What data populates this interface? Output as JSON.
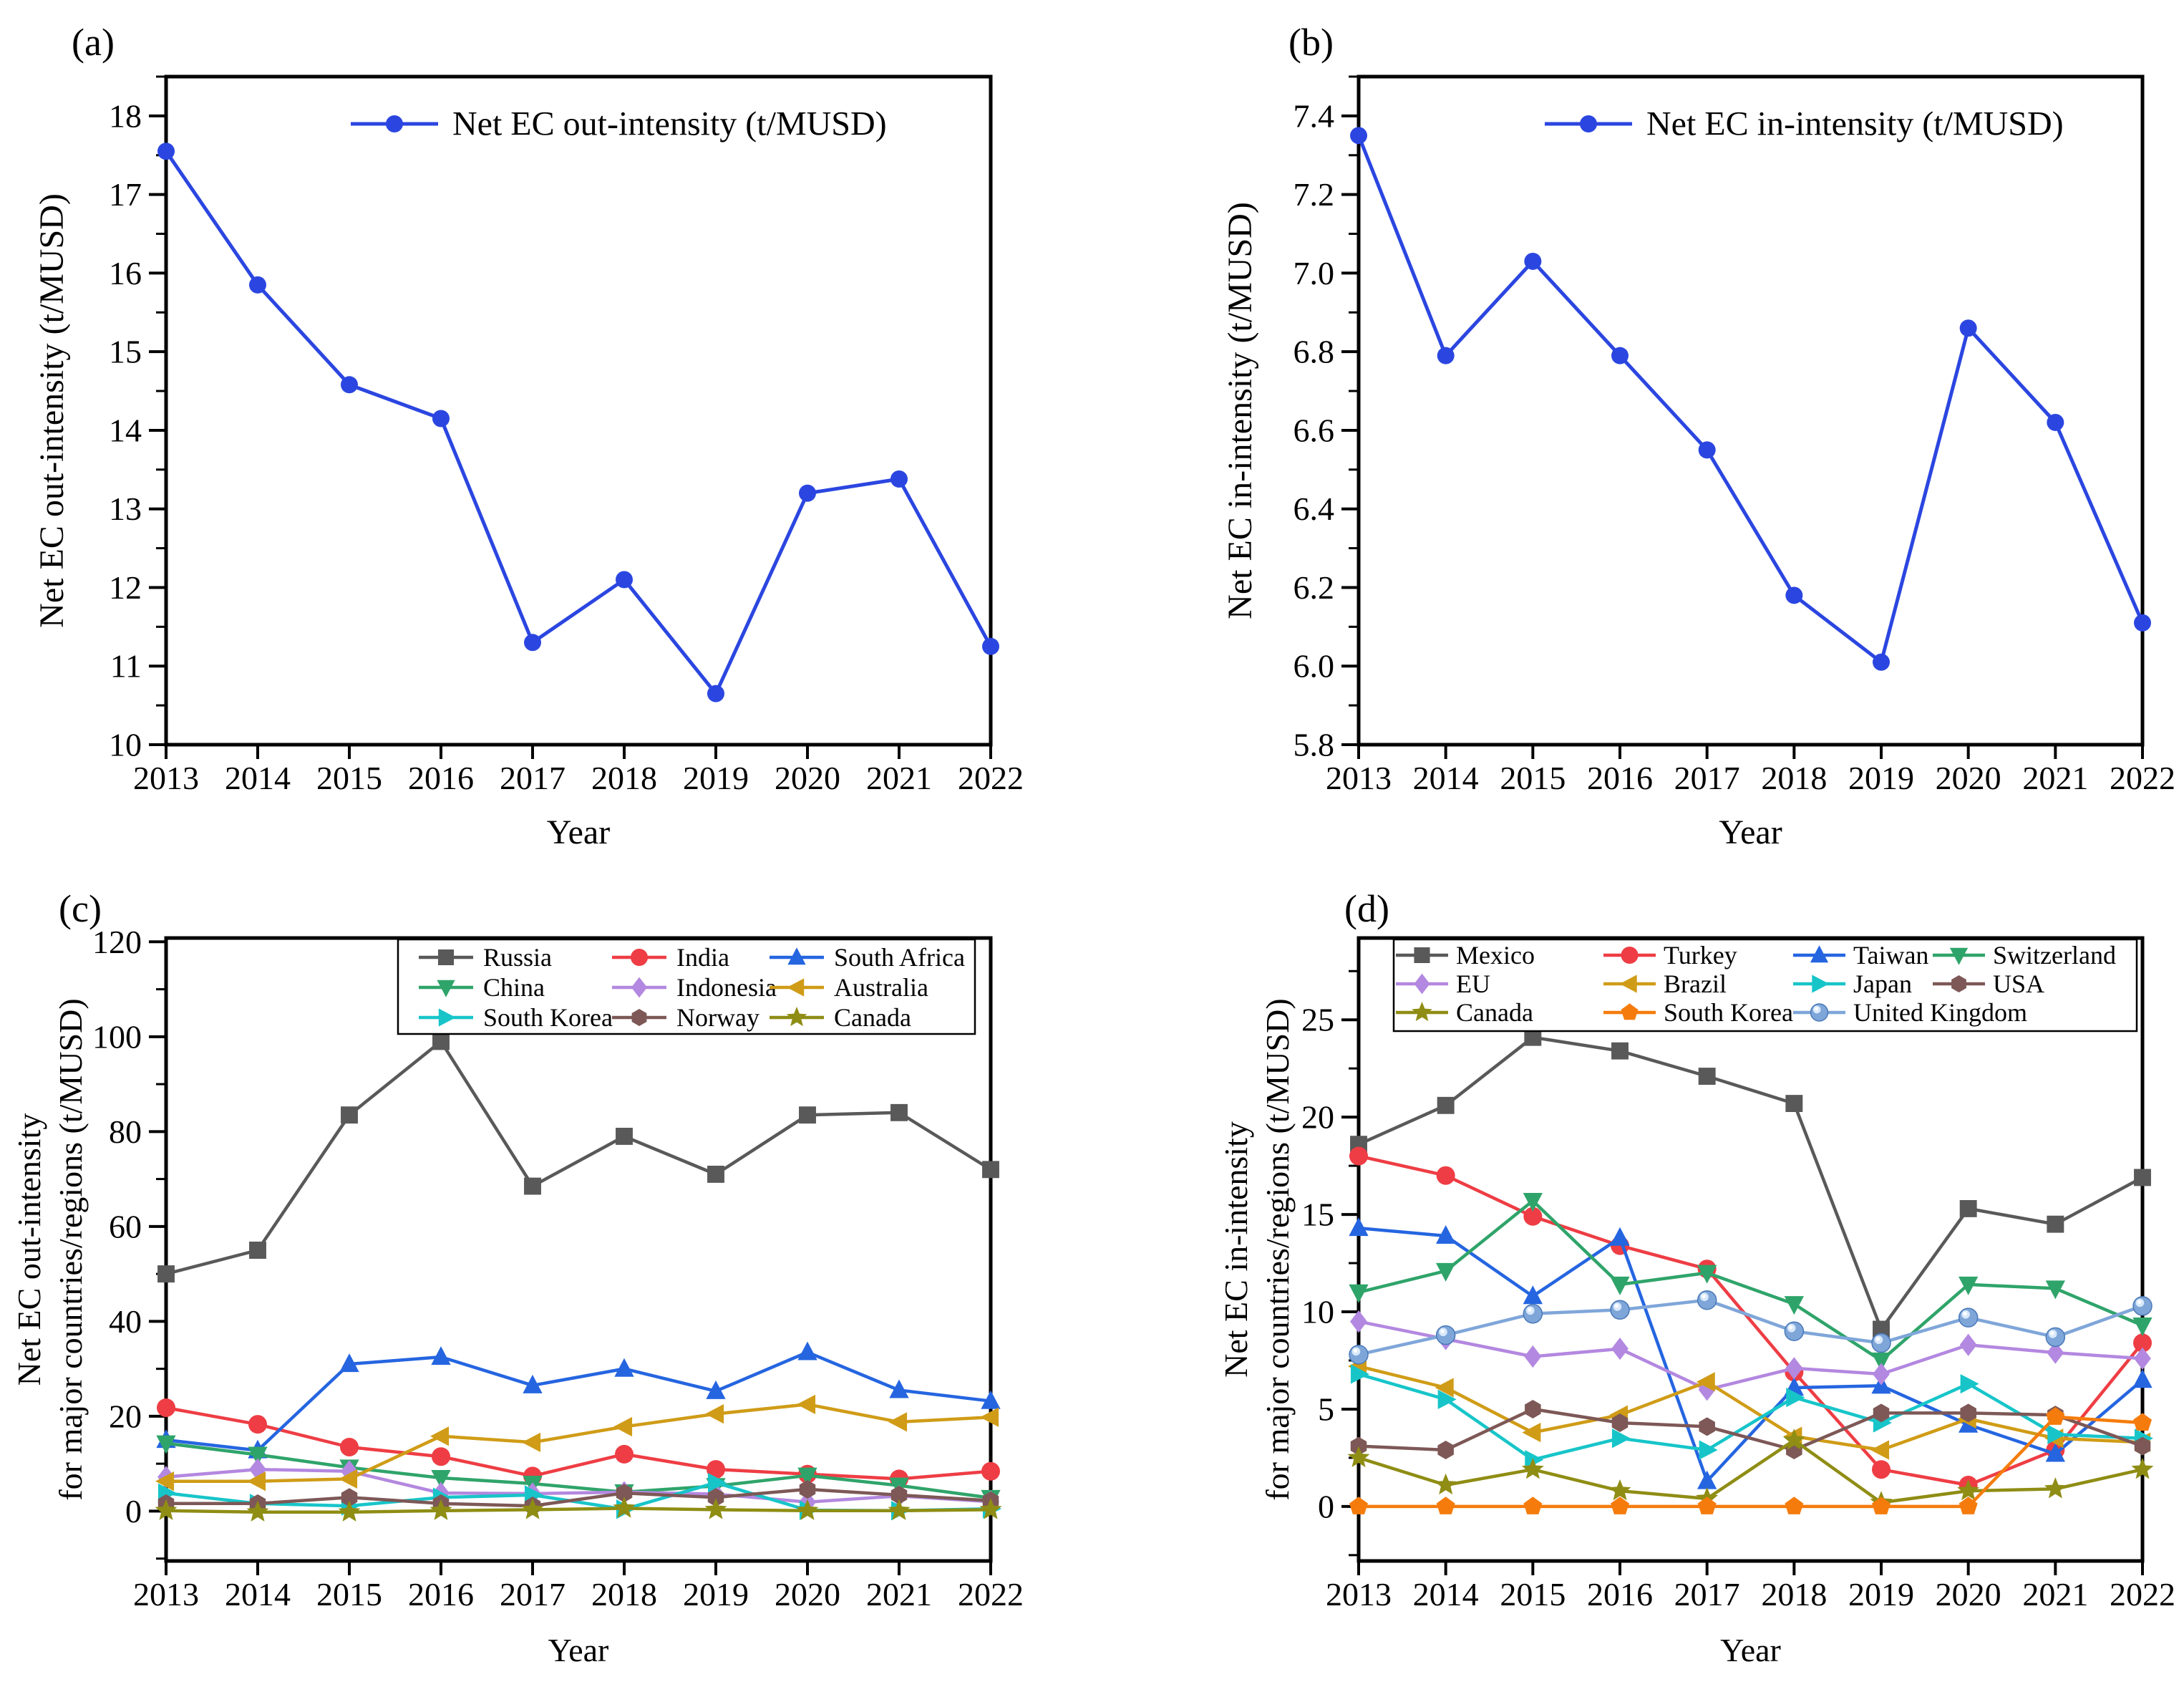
{
  "figure": {
    "panels": [
      {
        "letter": "(a)"
      },
      {
        "letter": "(b)"
      },
      {
        "letter": "(c)"
      },
      {
        "letter": "(d)"
      }
    ]
  },
  "chart_data": [
    {
      "id": "a",
      "type": "line",
      "title": "",
      "xlabel": "Year",
      "ylabel_lines": [
        "Net EC out-intensity (t/MUSD)"
      ],
      "x": [
        2013,
        2014,
        2015,
        2016,
        2017,
        2018,
        2019,
        2020,
        2021,
        2022
      ],
      "ylim": [
        10,
        18.5
      ],
      "yticks": {
        "start": 10,
        "end": 18,
        "step": 1,
        "minor_step": 0.5,
        "decimals": 0
      },
      "legend": {
        "boxed": false,
        "position": "top-center"
      },
      "grid": false,
      "series": [
        {
          "name": "Net EC out-intensity (t/MUSD)",
          "color": "#2b46e0",
          "marker": "circle",
          "values": [
            17.55,
            15.85,
            14.58,
            14.15,
            11.3,
            12.1,
            10.65,
            13.2,
            13.38,
            11.25
          ]
        }
      ]
    },
    {
      "id": "b",
      "type": "line",
      "title": "",
      "xlabel": "Year",
      "ylabel_lines": [
        "Net EC in-intensity (t/MUSD)"
      ],
      "x": [
        2013,
        2014,
        2015,
        2016,
        2017,
        2018,
        2019,
        2020,
        2021,
        2022
      ],
      "ylim": [
        5.8,
        7.5
      ],
      "yticks": {
        "start": 5.8,
        "end": 7.4,
        "step": 0.2,
        "minor_step": 0.1,
        "decimals": 1
      },
      "legend": {
        "boxed": false,
        "position": "top-center"
      },
      "grid": false,
      "series": [
        {
          "name": "Net EC in-intensity (t/MUSD)",
          "color": "#2b46e0",
          "marker": "circle",
          "values": [
            7.35,
            6.79,
            7.03,
            6.79,
            6.55,
            6.18,
            6.01,
            6.86,
            6.62,
            6.11
          ]
        }
      ]
    },
    {
      "id": "c",
      "type": "line",
      "title": "",
      "xlabel": "Year",
      "ylabel_lines": [
        "Net EC out-intensity",
        "for major countries/regions (t/MUSD)"
      ],
      "x": [
        2013,
        2014,
        2015,
        2016,
        2017,
        2018,
        2019,
        2020,
        2021,
        2022
      ],
      "ylim": [
        -10.5,
        120.8
      ],
      "yticks": {
        "start": 0,
        "end": 120,
        "step": 20,
        "minor_step": 10,
        "decimals": 0
      },
      "legend": {
        "boxed": true,
        "columns": 3,
        "grid": [
          [
            "Russia",
            "India",
            "South Africa"
          ],
          [
            "China",
            "Indonesia",
            "Australia"
          ],
          [
            "South Korea",
            "Norway",
            "Canada"
          ]
        ]
      },
      "grid": false,
      "series": [
        {
          "name": "Russia",
          "color": "#595959",
          "marker": "square",
          "values": [
            50,
            55,
            83.5,
            99,
            68.5,
            79,
            71,
            83.5,
            84,
            72
          ]
        },
        {
          "name": "India",
          "color": "#ee3d44",
          "marker": "circle",
          "values": [
            21.8,
            18.3,
            13.5,
            11.5,
            7.4,
            12.0,
            8.8,
            7.8,
            6.8,
            8.4
          ]
        },
        {
          "name": "South Africa",
          "color": "#2565e0",
          "marker": "triangle-up",
          "values": [
            15.0,
            12.8,
            31.0,
            32.5,
            26.5,
            30.0,
            25.3,
            33.5,
            25.5,
            23.2
          ]
        },
        {
          "name": "China",
          "color": "#2fa46a",
          "marker": "triangle-down",
          "values": [
            14.3,
            11.9,
            9.2,
            7.0,
            5.8,
            4.0,
            5.3,
            7.5,
            5.4,
            2.8
          ]
        },
        {
          "name": "Indonesia",
          "color": "#b388e0",
          "marker": "diamond",
          "values": [
            7.2,
            8.8,
            8.4,
            3.8,
            3.7,
            4.0,
            3.6,
            1.9,
            3.2,
            2.0
          ]
        },
        {
          "name": "Australia",
          "color": "#d09c17",
          "marker": "triangle-left",
          "values": [
            6.3,
            6.3,
            6.8,
            15.8,
            14.5,
            17.8,
            20.5,
            22.5,
            18.8,
            19.8
          ]
        },
        {
          "name": "South Korea",
          "color": "#17c5c9",
          "marker": "triangle-right",
          "values": [
            3.8,
            1.6,
            1.1,
            2.9,
            3.4,
            0.4,
            6.0,
            0.2,
            0.1,
            0.5
          ]
        },
        {
          "name": "Norway",
          "color": "#7d5856",
          "marker": "hexagon",
          "values": [
            1.6,
            1.6,
            2.9,
            1.6,
            1.1,
            3.8,
            2.9,
            4.6,
            3.4,
            2.2
          ]
        },
        {
          "name": "Canada",
          "color": "#8f8d14",
          "marker": "star",
          "values": [
            0.1,
            -0.2,
            -0.2,
            0.1,
            0.3,
            0.6,
            0.3,
            0.1,
            0.1,
            0.3
          ]
        }
      ]
    },
    {
      "id": "d",
      "type": "line",
      "title": "",
      "xlabel": "Year",
      "ylabel_lines": [
        "Net EC in-intensity",
        "for major countries/regions (t/MUSD)"
      ],
      "x": [
        2013,
        2014,
        2015,
        2016,
        2017,
        2018,
        2019,
        2020,
        2021,
        2022
      ],
      "ylim": [
        -2.8,
        29.2
      ],
      "yticks": {
        "start": 0,
        "end": 25,
        "step": 5,
        "minor_step": 2.5,
        "decimals": 0
      },
      "legend": {
        "boxed": true,
        "columns": 4,
        "grid": [
          [
            "Mexico",
            "Turkey",
            "Taiwan",
            "Switzerland"
          ],
          [
            "EU",
            "Brazil",
            "Japan",
            "USA"
          ],
          [
            "Canada",
            "South Korea",
            "United Kingdom"
          ]
        ]
      },
      "grid": false,
      "series": [
        {
          "name": "Mexico",
          "color": "#595959",
          "marker": "square",
          "values": [
            18.6,
            20.6,
            24.1,
            23.4,
            22.1,
            20.7,
            9.1,
            15.3,
            14.5,
            16.9
          ]
        },
        {
          "name": "Turkey",
          "color": "#ee3d44",
          "marker": "circle",
          "values": [
            18.0,
            17.0,
            14.9,
            13.4,
            12.2,
            6.9,
            1.9,
            1.1,
            2.9,
            8.4
          ]
        },
        {
          "name": "Taiwan",
          "color": "#2565e0",
          "marker": "triangle-up",
          "values": [
            14.3,
            13.9,
            10.8,
            13.8,
            1.3,
            6.1,
            6.2,
            4.2,
            2.7,
            6.5
          ]
        },
        {
          "name": "Switzerland",
          "color": "#2fa46a",
          "marker": "triangle-down",
          "values": [
            11.0,
            12.1,
            15.7,
            11.4,
            12.0,
            10.4,
            7.5,
            11.4,
            11.2,
            9.3
          ]
        },
        {
          "name": "EU",
          "color": "#b388e0",
          "marker": "diamond",
          "values": [
            9.5,
            8.6,
            7.7,
            8.1,
            6.0,
            7.1,
            6.8,
            8.3,
            7.9,
            7.6
          ]
        },
        {
          "name": "Brazil",
          "color": "#d09c17",
          "marker": "triangle-left",
          "values": [
            7.2,
            6.1,
            3.8,
            4.7,
            6.4,
            3.6,
            2.9,
            4.5,
            3.5,
            3.3
          ]
        },
        {
          "name": "Japan",
          "color": "#17c5c9",
          "marker": "triangle-right",
          "values": [
            6.8,
            5.5,
            2.4,
            3.5,
            2.9,
            5.6,
            4.3,
            6.3,
            3.7,
            3.5
          ]
        },
        {
          "name": "USA",
          "color": "#7d5856",
          "marker": "hexagon",
          "values": [
            3.1,
            2.9,
            5.0,
            4.3,
            4.1,
            2.9,
            4.8,
            4.8,
            4.7,
            3.1
          ]
        },
        {
          "name": "Canada",
          "color": "#8f8d14",
          "marker": "star",
          "values": [
            2.5,
            1.1,
            1.9,
            0.8,
            0.4,
            3.4,
            0.2,
            0.8,
            0.9,
            1.9
          ]
        },
        {
          "name": "South Korea",
          "color": "#f57c0c",
          "marker": "pentagon",
          "values": [
            0,
            0,
            0,
            0,
            0,
            0,
            0,
            0,
            4.6,
            4.3
          ]
        },
        {
          "name": "United Kingdom",
          "color": "#7fa6d9",
          "marker": "sphere",
          "values": [
            7.8,
            8.8,
            9.9,
            10.1,
            10.6,
            9.0,
            8.4,
            9.7,
            8.7,
            10.3
          ]
        }
      ]
    }
  ]
}
